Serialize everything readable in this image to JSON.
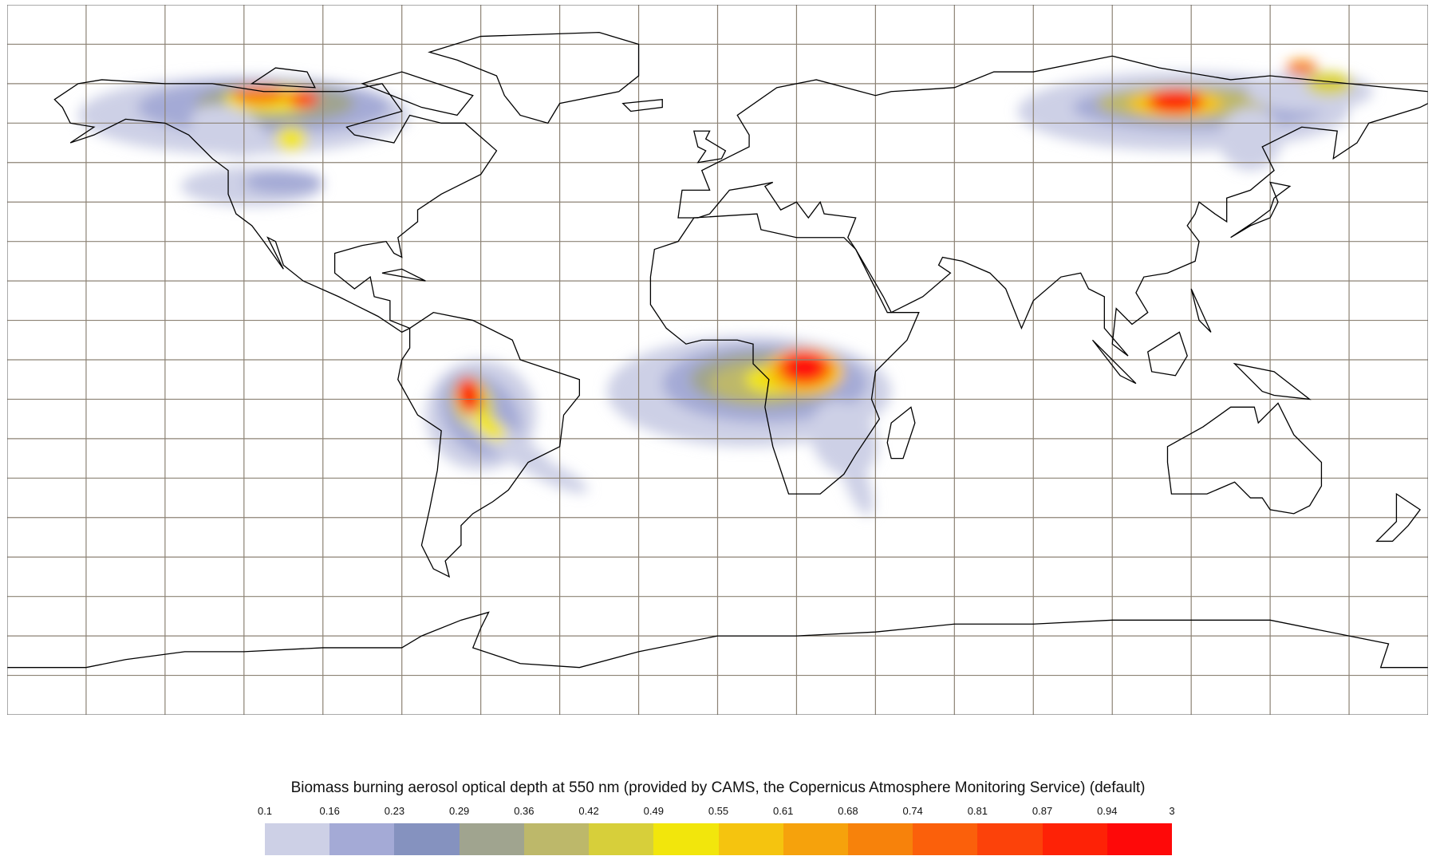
{
  "legend": {
    "title": "Biomass burning aerosol optical depth at 550 nm (provided by CAMS, the Copernicus Atmosphere Monitoring Service) (default)",
    "ticks": [
      "0.1",
      "0.16",
      "0.23",
      "0.29",
      "0.36",
      "0.42",
      "0.49",
      "0.55",
      "0.61",
      "0.68",
      "0.74",
      "0.81",
      "0.87",
      "0.94",
      "3"
    ],
    "colors": [
      "#cdd0e6",
      "#a4aad6",
      "#8592bf",
      "#a0a48f",
      "#bdb86a",
      "#d7cf3a",
      "#f2e60c",
      "#f5c40f",
      "#f6a20c",
      "#f7820b",
      "#fb600b",
      "#fc420a",
      "#fe2206",
      "#fe0909"
    ]
  },
  "map": {
    "projection": "equirectangular",
    "graticule_step_deg": 20,
    "graticule_lat_step_deg": 10,
    "grid_color": "#8c8274",
    "coastline_color": "#000000"
  }
}
